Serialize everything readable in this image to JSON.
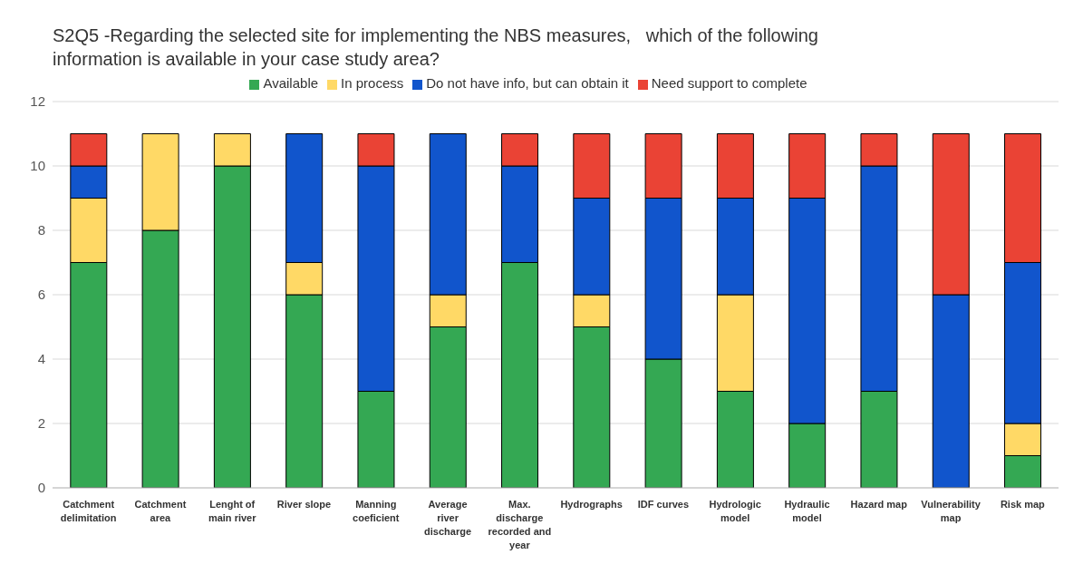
{
  "chart_data": {
    "type": "bar",
    "title": "S2Q5 -Regarding the selected site for implementing the NBS measures,   which of the following information is available in your case study area?",
    "categories": [
      "Catchment delimitation",
      "Catchment area",
      "Lenght of main river",
      "River slope",
      "Manning coeficient",
      "Average river discharge",
      "Max. discharge recorded and year",
      "Hydrographs",
      "IDF curves",
      "Hydrologic model",
      "Hydraulic model",
      "Hazard map",
      "Vulnerability map",
      "Risk map"
    ],
    "series": [
      {
        "name": "Available",
        "color": "#34a853",
        "values": [
          7,
          8,
          10,
          6,
          3,
          5,
          7,
          5,
          4,
          3,
          2,
          3,
          0,
          1
        ]
      },
      {
        "name": "In process",
        "color": "#ffd966",
        "values": [
          2,
          3,
          1,
          1,
          0,
          1,
          0,
          1,
          0,
          3,
          0,
          0,
          0,
          1
        ]
      },
      {
        "name": "Do not have info, but can obtain it",
        "color": "#1155cc",
        "values": [
          1,
          0,
          0,
          4,
          7,
          5,
          3,
          3,
          5,
          3,
          7,
          7,
          6,
          5
        ]
      },
      {
        "name": "Need support to complete",
        "color": "#ea4335",
        "values": [
          1,
          0,
          0,
          0,
          1,
          0,
          1,
          2,
          2,
          2,
          2,
          1,
          5,
          4
        ]
      }
    ],
    "stacked": true,
    "ylim": [
      0,
      12
    ],
    "yticks": [
      0,
      2,
      4,
      6,
      8,
      10,
      12
    ],
    "grid": "y",
    "legend": "top"
  }
}
